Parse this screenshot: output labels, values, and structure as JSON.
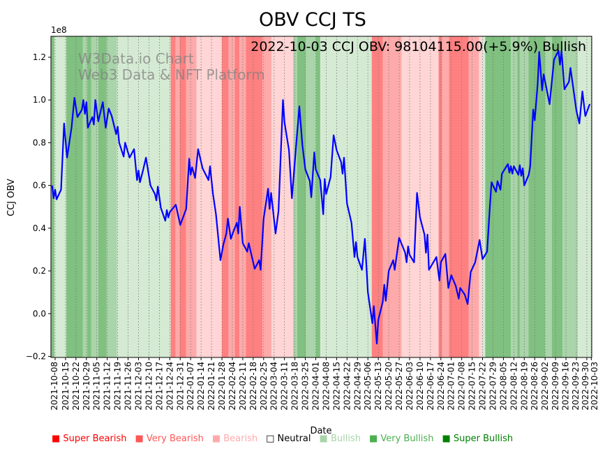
{
  "chart_data": {
    "type": "line",
    "title": "OBV CCJ TS",
    "annotation": "2022-10-03 CCJ OBV: 98104115.00(+5.9%) Bullish",
    "watermark": [
      "W3Data.io Chart",
      "Web3 Data & NFT Platform"
    ],
    "xlabel": "Date",
    "ylabel": "CCJ OBV",
    "y_offset_label": "1e8",
    "y_scale": 100000000,
    "ylim": [
      -0.205,
      1.298
    ],
    "x_origin_date": "2021-10-08",
    "xlim_days": [
      -2.8,
      360.3
    ],
    "yticks": [
      -0.2,
      0.0,
      0.2,
      0.4,
      0.6,
      0.8,
      1.0,
      1.2
    ],
    "ytick_labels": [
      "−0.2",
      "0.0",
      "0.2",
      "0.4",
      "0.6",
      "0.8",
      "1.0",
      "1.2"
    ],
    "xtick_labels": [
      "2021-10-08",
      "2021-10-15",
      "2021-10-22",
      "2021-10-29",
      "2021-11-05",
      "2021-11-12",
      "2021-11-19",
      "2021-11-26",
      "2021-12-03",
      "2021-12-10",
      "2021-12-17",
      "2021-12-24",
      "2021-12-31",
      "2022-01-07",
      "2022-01-14",
      "2022-01-21",
      "2022-01-28",
      "2022-02-04",
      "2022-02-11",
      "2022-02-18",
      "2022-02-25",
      "2022-03-04",
      "2022-03-11",
      "2022-03-18",
      "2022-03-25",
      "2022-04-01",
      "2022-04-08",
      "2022-04-15",
      "2022-04-22",
      "2022-04-29",
      "2022-05-06",
      "2022-05-13",
      "2022-05-20",
      "2022-05-27",
      "2022-06-03",
      "2022-06-10",
      "2022-06-17",
      "2022-06-24",
      "2022-07-01",
      "2022-07-08",
      "2022-07-15",
      "2022-07-22",
      "2022-07-29",
      "2022-08-05",
      "2022-08-12",
      "2022-08-19",
      "2022-08-26",
      "2022-09-02",
      "2022-09-09",
      "2022-09-16",
      "2022-09-23",
      "2022-09-30",
      "2022-10-03"
    ],
    "grid": "vertical dotted at x ticks",
    "series": [
      {
        "name": "CCJ OBV",
        "color": "#0000ff",
        "x_days": [
          -2,
          -1,
          0,
          1,
          4,
          6,
          8,
          11,
          13,
          15,
          18,
          19,
          20,
          21,
          22,
          25,
          26,
          27,
          29,
          32,
          34,
          36,
          38,
          41,
          42,
          43,
          46,
          47,
          50,
          53,
          55,
          56,
          57,
          59,
          61,
          64,
          67,
          68,
          69,
          71,
          74,
          75,
          76,
          77,
          81,
          84,
          88,
          90,
          91,
          92,
          94,
          96,
          99,
          103,
          104,
          106,
          108,
          111,
          113,
          115,
          116,
          118,
          120,
          122,
          123,
          124,
          126,
          129,
          130,
          134,
          137,
          138,
          140,
          143,
          144,
          145,
          148,
          150,
          153,
          154,
          157,
          159,
          162,
          164,
          166,
          168,
          171,
          172,
          174,
          175,
          178,
          180,
          181,
          182,
          185,
          187,
          189,
          192,
          193,
          194,
          196,
          199,
          201,
          202,
          203,
          206,
          208,
          210,
          213,
          214,
          216,
          217,
          220,
          221,
          222,
          224,
          227,
          228,
          231,
          235,
          236,
          237,
          238,
          241,
          243,
          245,
          248,
          249,
          250,
          251,
          256,
          258,
          259,
          262,
          264,
          266,
          269,
          271,
          272,
          275,
          277,
          279,
          282,
          285,
          287,
          290,
          292,
          293,
          296,
          297,
          299,
          300,
          304,
          305,
          306,
          307,
          308,
          311,
          312,
          313,
          314,
          315,
          318,
          319,
          321,
          322,
          324,
          325,
          327,
          328,
          332,
          335,
          338,
          339,
          340,
          342,
          345,
          346,
          350,
          352,
          354,
          356,
          359
        ],
        "values": [
          0.6,
          0.54,
          0.58,
          0.535,
          0.58,
          0.89,
          0.73,
          0.87,
          1.01,
          0.92,
          0.955,
          1.0,
          0.935,
          0.99,
          0.87,
          0.92,
          0.885,
          1.0,
          0.9,
          0.99,
          0.87,
          0.96,
          0.925,
          0.84,
          0.875,
          0.8,
          0.735,
          0.8,
          0.73,
          0.77,
          0.625,
          0.67,
          0.615,
          0.67,
          0.73,
          0.6,
          0.56,
          0.53,
          0.595,
          0.495,
          0.435,
          0.485,
          0.45,
          0.475,
          0.51,
          0.415,
          0.49,
          0.725,
          0.65,
          0.685,
          0.635,
          0.77,
          0.68,
          0.625,
          0.69,
          0.56,
          0.465,
          0.25,
          0.325,
          0.375,
          0.445,
          0.35,
          0.39,
          0.425,
          0.375,
          0.5,
          0.33,
          0.29,
          0.33,
          0.21,
          0.25,
          0.205,
          0.445,
          0.585,
          0.49,
          0.565,
          0.375,
          0.48,
          1.0,
          0.895,
          0.765,
          0.54,
          0.8,
          0.97,
          0.79,
          0.675,
          0.62,
          0.545,
          0.755,
          0.675,
          0.625,
          0.465,
          0.63,
          0.56,
          0.64,
          0.835,
          0.765,
          0.71,
          0.655,
          0.73,
          0.515,
          0.425,
          0.265,
          0.335,
          0.265,
          0.205,
          0.35,
          0.1,
          -0.045,
          0.035,
          -0.14,
          -0.03,
          0.055,
          0.135,
          0.06,
          0.2,
          0.25,
          0.205,
          0.355,
          0.285,
          0.24,
          0.315,
          0.275,
          0.24,
          0.565,
          0.45,
          0.37,
          0.285,
          0.37,
          0.205,
          0.265,
          0.155,
          0.24,
          0.28,
          0.12,
          0.18,
          0.13,
          0.07,
          0.12,
          0.09,
          0.045,
          0.195,
          0.24,
          0.345,
          0.255,
          0.29,
          0.51,
          0.615,
          0.57,
          0.62,
          0.58,
          0.655,
          0.7,
          0.66,
          0.69,
          0.655,
          0.69,
          0.65,
          0.695,
          0.645,
          0.68,
          0.6,
          0.65,
          0.69,
          0.955,
          0.905,
          1.075,
          1.225,
          1.045,
          1.12,
          0.98,
          1.19,
          1.23,
          1.165,
          1.23,
          1.05,
          1.085,
          1.15,
          0.95,
          0.89,
          1.04,
          0.925,
          0.981
        ]
      }
    ],
    "signal_bands": [
      [
        -3,
        -0.5,
        3
      ],
      [
        -0.5,
        7.5,
        1
      ],
      [
        7.5,
        18.7,
        3
      ],
      [
        18.7,
        21.5,
        2
      ],
      [
        21.5,
        24.3,
        3
      ],
      [
        24.3,
        29,
        2
      ],
      [
        29,
        34.6,
        3
      ],
      [
        34.6,
        41.6,
        2
      ],
      [
        41.6,
        77.6,
        1
      ],
      [
        77.6,
        80.8,
        -3
      ],
      [
        80.8,
        83.6,
        -2
      ],
      [
        83.6,
        87.9,
        -3
      ],
      [
        87.9,
        94.9,
        -2
      ],
      [
        94.9,
        112,
        -1
      ],
      [
        112,
        116.4,
        -3
      ],
      [
        116.4,
        120.6,
        -2
      ],
      [
        120.6,
        123.8,
        -3
      ],
      [
        123.8,
        128,
        -2
      ],
      [
        128,
        139.3,
        -3
      ],
      [
        139.3,
        145.3,
        -2
      ],
      [
        145.3,
        159.8,
        -1
      ],
      [
        159.8,
        162.6,
        2
      ],
      [
        162.6,
        168.2,
        3
      ],
      [
        168.2,
        175.2,
        2
      ],
      [
        175.2,
        178,
        3
      ],
      [
        178,
        212.6,
        1
      ],
      [
        212.6,
        220,
        -3
      ],
      [
        220,
        232.7,
        -2
      ],
      [
        232.7,
        257.5,
        -1
      ],
      [
        257.5,
        259.8,
        -3
      ],
      [
        259.8,
        264.5,
        -2
      ],
      [
        264.5,
        277.6,
        -3
      ],
      [
        277.6,
        284.6,
        -2
      ],
      [
        284.6,
        286.9,
        -1
      ],
      [
        286.9,
        288.8,
        1
      ],
      [
        288.8,
        306,
        3
      ],
      [
        306,
        310.3,
        2
      ],
      [
        310.3,
        312,
        3
      ],
      [
        312,
        317.8,
        2
      ],
      [
        317.8,
        329,
        3
      ],
      [
        329,
        333.6,
        2
      ],
      [
        333.6,
        340.7,
        3
      ],
      [
        340.7,
        351,
        2
      ],
      [
        351,
        361,
        1
      ]
    ],
    "band_colors": {
      "3": "#80c080",
      "2": "#aad4aa",
      "1": "#d5ead3",
      "-1": "#ffd5d5",
      "-2": "#ffaaaa",
      "-3": "#ff8080"
    },
    "legend": [
      {
        "label": "Super Bearish",
        "color": "#ff0000"
      },
      {
        "label": "Very Bearish",
        "color": "#ff5555"
      },
      {
        "label": "Bearish",
        "color": "#ffaaaa"
      },
      {
        "label": "Neutral",
        "color": "#000000"
      },
      {
        "label": "Bullish",
        "color": "#a8d5a8"
      },
      {
        "label": "Very Bullish",
        "color": "#4caf50"
      },
      {
        "label": "Super Bullish",
        "color": "#008000"
      }
    ],
    "legend_placement": "bottom"
  }
}
